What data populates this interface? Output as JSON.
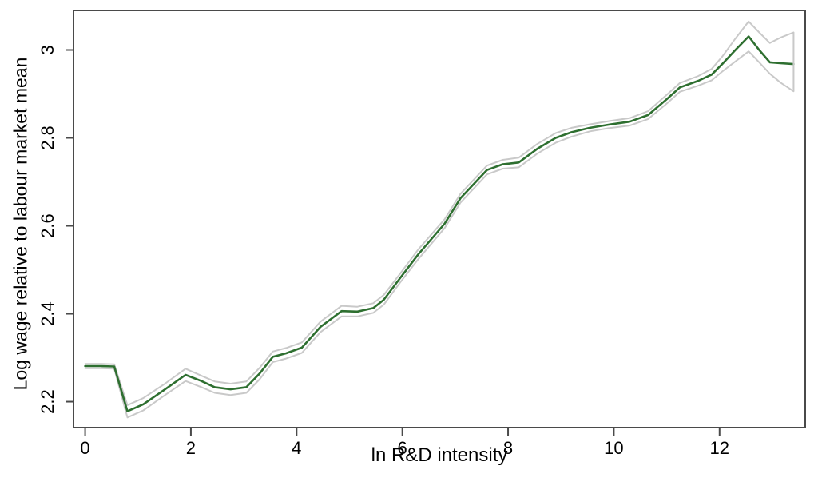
{
  "figure": {
    "background": "#ffffff"
  },
  "chart_data": {
    "type": "line",
    "title": "",
    "xlabel": "ln R&D intensity",
    "ylabel": "Log wage relative to labour market mean",
    "grid": false,
    "legend": "none",
    "xlim": [
      -0.22,
      13.62
    ],
    "ylim": [
      2.141,
      3.09
    ],
    "x_ticks": [
      0,
      2,
      4,
      6,
      8,
      10,
      12
    ],
    "x_tick_labels": [
      "0",
      "2",
      "4",
      "6",
      "8",
      "10",
      "12"
    ],
    "y_ticks": [
      2.2,
      2.4,
      2.6,
      2.8,
      3
    ],
    "y_tick_labels": [
      "2.2",
      "2.4",
      "2.6",
      "2.8",
      "3"
    ],
    "colors": {
      "estimate": "#2e6f30",
      "confidence_band": "#c9c9c9",
      "axis": "#4a4a4a",
      "text": "#000000"
    },
    "x": [
      0.0,
      0.3,
      0.55,
      0.8,
      1.1,
      1.5,
      1.9,
      2.2,
      2.45,
      2.75,
      3.05,
      3.3,
      3.55,
      3.8,
      4.1,
      4.45,
      4.85,
      5.15,
      5.45,
      5.65,
      5.95,
      6.3,
      6.8,
      7.1,
      7.6,
      7.9,
      8.2,
      8.55,
      8.9,
      9.2,
      9.55,
      9.9,
      10.3,
      10.65,
      11.0,
      11.25,
      11.6,
      11.85,
      12.05,
      12.3,
      12.55,
      12.75,
      12.95,
      13.15,
      13.4
    ],
    "series": [
      {
        "name": "ci-upper",
        "role": "confidence_band",
        "color": "#c9c9c9",
        "width": 2,
        "values": [
          2.286,
          2.286,
          2.285,
          2.192,
          2.208,
          2.24,
          2.275,
          2.259,
          2.246,
          2.241,
          2.246,
          2.277,
          2.314,
          2.322,
          2.335,
          2.382,
          2.418,
          2.416,
          2.424,
          2.443,
          2.49,
          2.546,
          2.615,
          2.673,
          2.737,
          2.75,
          2.755,
          2.786,
          2.811,
          2.823,
          2.831,
          2.838,
          2.845,
          2.861,
          2.898,
          2.925,
          2.941,
          2.957,
          2.985,
          3.026,
          3.065,
          3.04,
          3.016,
          3.028,
          3.04
        ]
      },
      {
        "name": "ci-lower",
        "role": "confidence_band",
        "color": "#c9c9c9",
        "width": 2,
        "values": [
          2.276,
          2.276,
          2.275,
          2.164,
          2.18,
          2.214,
          2.247,
          2.233,
          2.22,
          2.215,
          2.22,
          2.251,
          2.29,
          2.298,
          2.311,
          2.358,
          2.394,
          2.394,
          2.402,
          2.421,
          2.47,
          2.524,
          2.595,
          2.653,
          2.717,
          2.73,
          2.733,
          2.764,
          2.789,
          2.803,
          2.815,
          2.822,
          2.828,
          2.843,
          2.878,
          2.905,
          2.919,
          2.931,
          2.951,
          2.974,
          2.997,
          2.972,
          2.946,
          2.926,
          2.906
        ]
      },
      {
        "name": "estimate",
        "role": "estimate",
        "color": "#2e6f30",
        "width": 2.6,
        "values": [
          2.281,
          2.281,
          2.28,
          2.178,
          2.194,
          2.227,
          2.261,
          2.247,
          2.233,
          2.228,
          2.233,
          2.264,
          2.302,
          2.31,
          2.323,
          2.37,
          2.406,
          2.405,
          2.413,
          2.432,
          2.48,
          2.535,
          2.605,
          2.663,
          2.727,
          2.74,
          2.744,
          2.775,
          2.8,
          2.813,
          2.823,
          2.83,
          2.837,
          2.852,
          2.888,
          2.915,
          2.93,
          2.944,
          2.968,
          3.0,
          3.031,
          3.0,
          2.972,
          2.97,
          2.968
        ]
      }
    ],
    "ci_end_cap": {
      "x": 13.4,
      "top": 3.04,
      "bottom": 2.906
    }
  }
}
